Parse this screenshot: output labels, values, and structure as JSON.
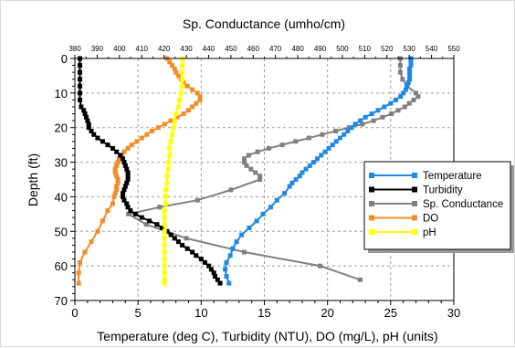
{
  "chart_data": {
    "type": "line",
    "title": "",
    "xlabel": "Temperature (deg C), Turbidity (NTU), DO (mg/L), pH (units)",
    "x2label": "Sp. Conductance (umho/cm)",
    "ylabel": "Depth (ft)",
    "xlim": [
      0,
      30
    ],
    "x2lim": [
      380,
      550
    ],
    "ylim": [
      0,
      70
    ],
    "y_inverted": true,
    "grid": true,
    "legend_position": "right",
    "x_ticks": [
      "0",
      "5",
      "10",
      "15",
      "20",
      "25",
      "30"
    ],
    "x2_ticks": [
      "380",
      "390",
      "400",
      "410",
      "420",
      "430",
      "440",
      "450",
      "460",
      "470",
      "480",
      "490",
      "500",
      "510",
      "520",
      "530",
      "540",
      "550"
    ],
    "y_ticks": [
      "0",
      "10",
      "20",
      "30",
      "40",
      "50",
      "60",
      "70"
    ],
    "series": [
      {
        "name": "Temperature",
        "axis": "bottom",
        "color": "#1e88e5",
        "points": [
          [
            26.6,
            0
          ],
          [
            26.6,
            1
          ],
          [
            26.6,
            2
          ],
          [
            26.5,
            3
          ],
          [
            26.5,
            4
          ],
          [
            26.5,
            5
          ],
          [
            26.5,
            6
          ],
          [
            26.4,
            7
          ],
          [
            26.3,
            8
          ],
          [
            26.2,
            9
          ],
          [
            26.0,
            10
          ],
          [
            25.8,
            11
          ],
          [
            25.4,
            12
          ],
          [
            25.0,
            13
          ],
          [
            24.5,
            14
          ],
          [
            24.0,
            15
          ],
          [
            23.5,
            16
          ],
          [
            23.0,
            17
          ],
          [
            22.6,
            18
          ],
          [
            22.2,
            19
          ],
          [
            21.9,
            20
          ],
          [
            21.6,
            21
          ],
          [
            21.3,
            22
          ],
          [
            21.0,
            23
          ],
          [
            20.7,
            24
          ],
          [
            20.4,
            25
          ],
          [
            20.1,
            26
          ],
          [
            19.8,
            27
          ],
          [
            19.5,
            28
          ],
          [
            19.2,
            29
          ],
          [
            18.9,
            30
          ],
          [
            18.6,
            31
          ],
          [
            18.3,
            32
          ],
          [
            18.0,
            33
          ],
          [
            17.8,
            34
          ],
          [
            17.5,
            35
          ],
          [
            17.2,
            36
          ],
          [
            17.0,
            37
          ],
          [
            16.6,
            39
          ],
          [
            16.0,
            41
          ],
          [
            15.5,
            43
          ],
          [
            14.9,
            45
          ],
          [
            14.4,
            47
          ],
          [
            13.8,
            49
          ],
          [
            13.2,
            51
          ],
          [
            12.8,
            53
          ],
          [
            12.5,
            55
          ],
          [
            12.3,
            57
          ],
          [
            12.0,
            59
          ],
          [
            11.9,
            61
          ],
          [
            12.0,
            63
          ],
          [
            12.2,
            65
          ]
        ]
      },
      {
        "name": "Turbidity",
        "axis": "bottom",
        "color": "#000000",
        "points": [
          [
            0.4,
            0
          ],
          [
            0.4,
            2
          ],
          [
            0.4,
            4
          ],
          [
            0.4,
            6
          ],
          [
            0.4,
            8
          ],
          [
            0.4,
            10
          ],
          [
            0.4,
            12
          ],
          [
            0.5,
            14
          ],
          [
            0.7,
            15
          ],
          [
            0.8,
            16
          ],
          [
            0.9,
            17
          ],
          [
            1.0,
            18
          ],
          [
            1.1,
            19
          ],
          [
            1.1,
            20
          ],
          [
            1.3,
            21
          ],
          [
            1.5,
            22
          ],
          [
            1.8,
            23
          ],
          [
            2.2,
            24
          ],
          [
            2.6,
            25
          ],
          [
            3.0,
            26
          ],
          [
            3.3,
            27
          ],
          [
            3.6,
            28
          ],
          [
            3.8,
            29
          ],
          [
            3.9,
            30
          ],
          [
            4.0,
            31
          ],
          [
            4.1,
            32
          ],
          [
            4.2,
            33
          ],
          [
            4.2,
            34
          ],
          [
            4.2,
            35
          ],
          [
            4.1,
            36
          ],
          [
            4.0,
            37
          ],
          [
            3.9,
            38
          ],
          [
            3.8,
            39
          ],
          [
            3.8,
            40
          ],
          [
            3.9,
            41
          ],
          [
            4.1,
            42
          ],
          [
            4.2,
            43
          ],
          [
            4.4,
            44
          ],
          [
            4.8,
            45
          ],
          [
            5.3,
            46
          ],
          [
            5.9,
            47
          ],
          [
            6.5,
            48
          ],
          [
            6.9,
            49
          ],
          [
            7.3,
            50
          ],
          [
            7.6,
            51
          ],
          [
            7.9,
            52
          ],
          [
            8.2,
            53
          ],
          [
            8.5,
            54
          ],
          [
            8.9,
            55
          ],
          [
            9.3,
            56
          ],
          [
            9.6,
            57
          ],
          [
            10.0,
            58
          ],
          [
            10.3,
            59
          ],
          [
            10.6,
            60
          ],
          [
            10.8,
            61
          ],
          [
            11.0,
            62
          ],
          [
            11.1,
            63
          ],
          [
            11.3,
            64
          ],
          [
            11.5,
            65
          ]
        ]
      },
      {
        "name": "Sp. Conductance",
        "axis": "top",
        "color": "#808080",
        "points": [
          [
            526,
            0
          ],
          [
            526,
            2
          ],
          [
            526,
            4
          ],
          [
            527,
            6
          ],
          [
            529,
            8
          ],
          [
            533,
            10
          ],
          [
            534,
            11
          ],
          [
            532,
            12
          ],
          [
            530,
            13
          ],
          [
            528,
            14
          ],
          [
            525,
            15
          ],
          [
            522,
            16
          ],
          [
            518,
            17
          ],
          [
            514,
            18
          ],
          [
            509,
            19
          ],
          [
            503,
            20
          ],
          [
            497,
            21
          ],
          [
            491,
            22
          ],
          [
            485,
            23
          ],
          [
            479,
            24
          ],
          [
            473,
            25
          ],
          [
            467,
            26
          ],
          [
            462,
            27
          ],
          [
            458,
            28
          ],
          [
            456,
            29
          ],
          [
            456,
            30
          ],
          [
            457,
            31
          ],
          [
            459,
            32
          ],
          [
            461,
            33
          ],
          [
            463,
            34
          ],
          [
            463,
            35
          ],
          [
            450,
            38
          ],
          [
            435,
            41
          ],
          [
            418,
            43
          ],
          [
            404,
            45
          ],
          [
            412,
            48
          ],
          [
            430,
            52
          ],
          [
            456,
            56
          ],
          [
            490,
            60
          ],
          [
            508,
            64
          ]
        ]
      },
      {
        "name": "DO",
        "axis": "bottom",
        "color": "#f28c28",
        "points": [
          [
            7.3,
            0
          ],
          [
            7.5,
            1
          ],
          [
            7.7,
            2
          ],
          [
            7.9,
            3
          ],
          [
            8.0,
            4
          ],
          [
            8.2,
            5
          ],
          [
            8.4,
            6
          ],
          [
            8.6,
            7
          ],
          [
            8.9,
            8
          ],
          [
            9.3,
            9
          ],
          [
            9.7,
            10
          ],
          [
            9.9,
            11
          ],
          [
            9.9,
            12
          ],
          [
            9.6,
            13
          ],
          [
            9.3,
            14
          ],
          [
            9.0,
            15
          ],
          [
            8.6,
            16
          ],
          [
            8.1,
            17
          ],
          [
            7.6,
            18
          ],
          [
            7.1,
            19
          ],
          [
            6.6,
            20
          ],
          [
            6.1,
            21
          ],
          [
            5.7,
            22
          ],
          [
            5.3,
            23
          ],
          [
            4.9,
            24
          ],
          [
            4.5,
            25
          ],
          [
            4.2,
            26
          ],
          [
            3.9,
            27
          ],
          [
            3.7,
            28
          ],
          [
            3.5,
            29
          ],
          [
            3.4,
            30
          ],
          [
            3.3,
            31
          ],
          [
            3.2,
            32
          ],
          [
            3.2,
            33
          ],
          [
            3.3,
            34
          ],
          [
            3.4,
            35
          ],
          [
            3.4,
            36
          ],
          [
            3.3,
            37
          ],
          [
            3.3,
            38
          ],
          [
            3.2,
            39
          ],
          [
            3.1,
            40
          ],
          [
            3.0,
            42
          ],
          [
            2.6,
            44
          ],
          [
            2.2,
            47
          ],
          [
            1.8,
            50
          ],
          [
            1.3,
            53
          ],
          [
            0.8,
            56
          ],
          [
            0.4,
            59
          ],
          [
            0.3,
            62
          ],
          [
            0.3,
            65
          ]
        ]
      },
      {
        "name": "pH",
        "axis": "bottom",
        "color": "#ffff00",
        "points": [
          [
            8.5,
            0
          ],
          [
            8.5,
            2
          ],
          [
            8.5,
            4
          ],
          [
            8.5,
            6
          ],
          [
            8.5,
            8
          ],
          [
            8.4,
            10
          ],
          [
            8.3,
            12
          ],
          [
            8.2,
            14
          ],
          [
            8.0,
            16
          ],
          [
            7.9,
            18
          ],
          [
            7.8,
            20
          ],
          [
            7.7,
            22
          ],
          [
            7.6,
            24
          ],
          [
            7.5,
            26
          ],
          [
            7.5,
            28
          ],
          [
            7.4,
            30
          ],
          [
            7.4,
            32
          ],
          [
            7.3,
            34
          ],
          [
            7.3,
            36
          ],
          [
            7.2,
            38
          ],
          [
            7.2,
            40
          ],
          [
            7.2,
            42
          ],
          [
            7.1,
            44
          ],
          [
            7.1,
            46
          ],
          [
            7.1,
            48
          ],
          [
            7.1,
            50
          ],
          [
            7.1,
            52
          ],
          [
            7.1,
            54
          ],
          [
            7.1,
            56
          ],
          [
            7.1,
            58
          ],
          [
            7.1,
            60
          ],
          [
            7.1,
            62
          ],
          [
            7.1,
            64
          ],
          [
            7.1,
            65
          ]
        ]
      }
    ]
  }
}
